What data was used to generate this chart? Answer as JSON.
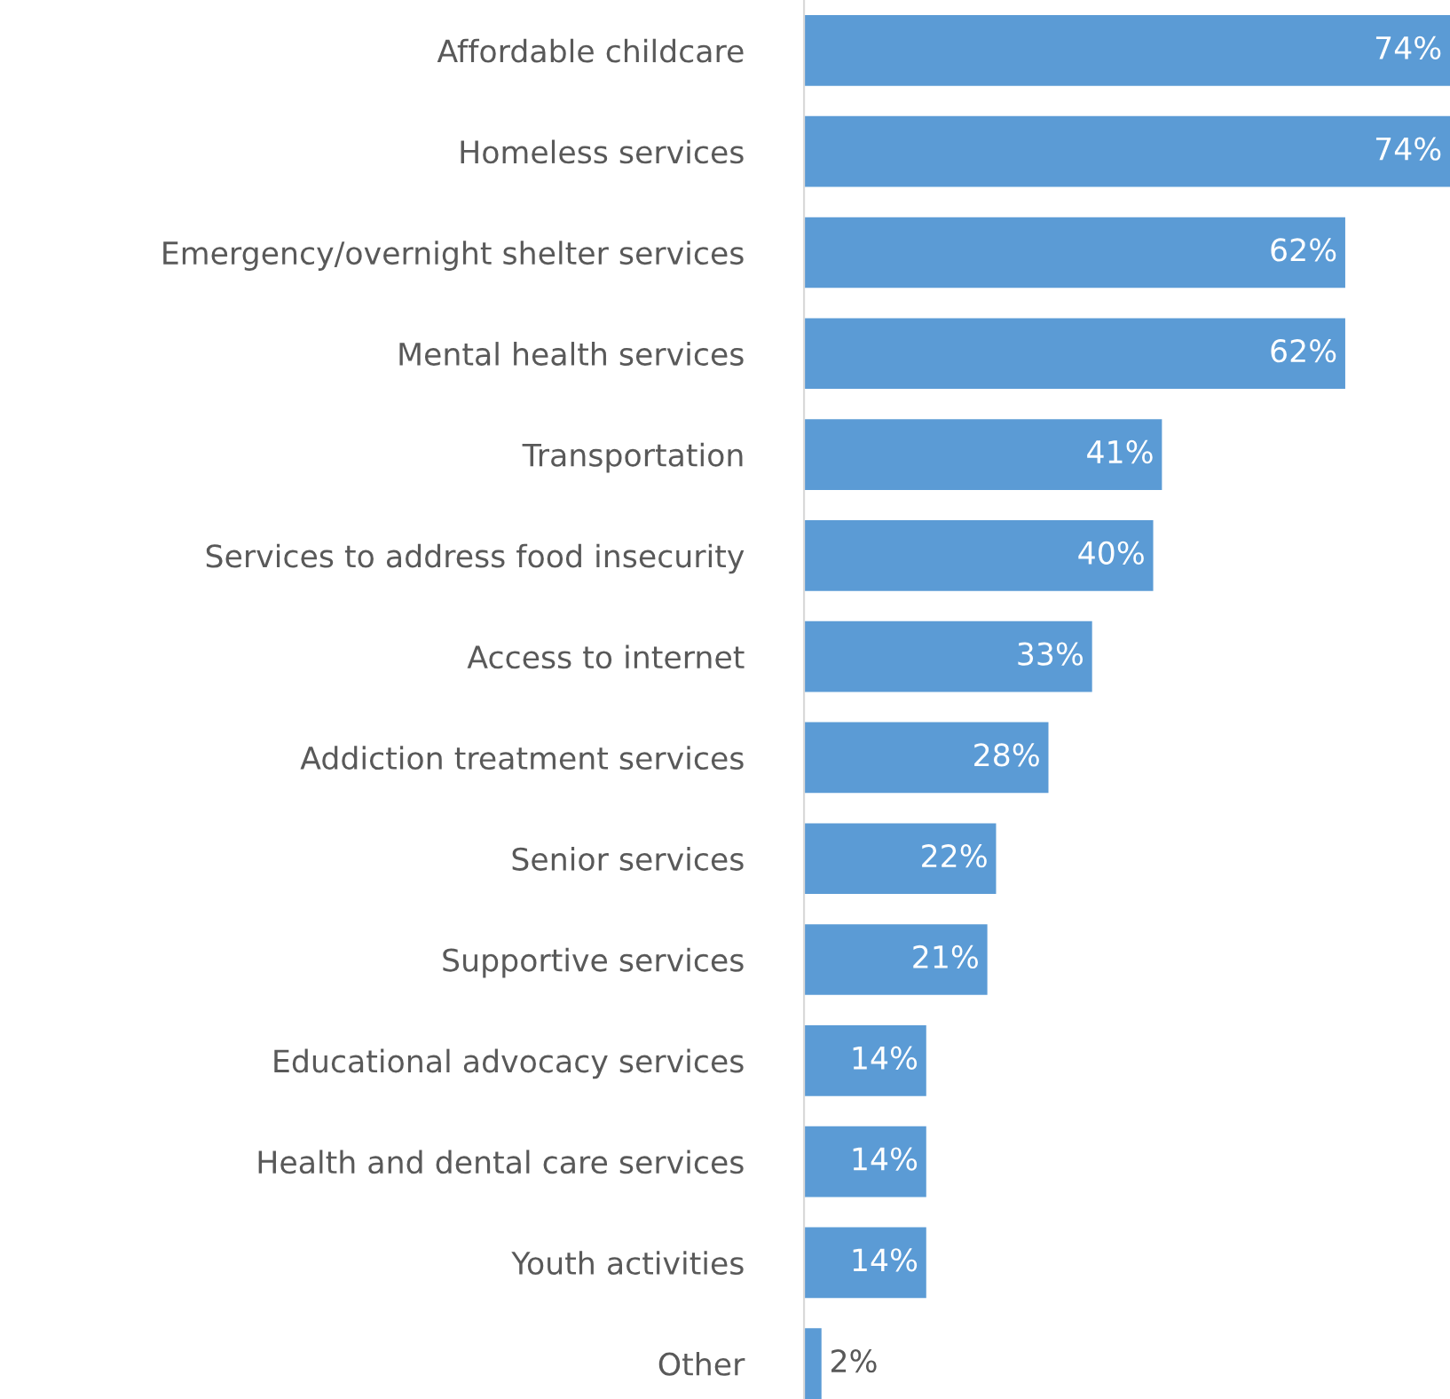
{
  "chart_data": {
    "type": "bar",
    "orientation": "horizontal",
    "categories": [
      "Affordable childcare",
      "Homeless services",
      "Emergency/overnight shelter services",
      "Mental health services",
      "Transportation",
      "Services to address food insecurity",
      "Access to internet",
      "Addiction treatment services",
      "Senior services",
      "Supportive services",
      "Educational advocacy services",
      "Health and dental care services",
      "Youth activities",
      "Other"
    ],
    "values": [
      74,
      74,
      62,
      62,
      41,
      40,
      33,
      28,
      22,
      21,
      14,
      14,
      14,
      2
    ],
    "value_labels": [
      "74%",
      "74%",
      "62%",
      "62%",
      "41%",
      "40%",
      "33%",
      "28%",
      "22%",
      "21%",
      "14%",
      "14%",
      "14%",
      "2%"
    ],
    "color": "#5b9bd5"
  }
}
